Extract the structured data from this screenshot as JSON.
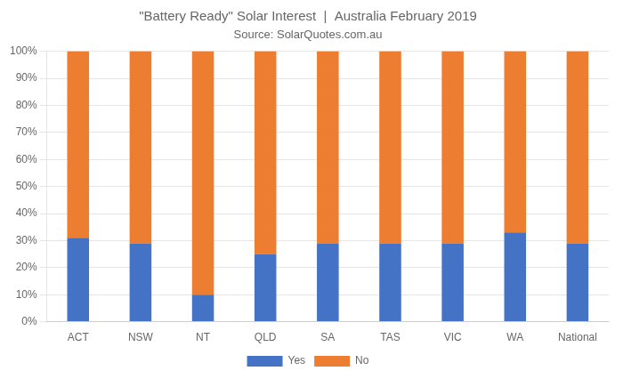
{
  "chart_data": {
    "type": "bar",
    "title": "\"Battery Ready\" Solar Interest  |  Australia February 2019",
    "subtitle": "Source: SolarQuotes.com.au",
    "categories": [
      "ACT",
      "NSW",
      "NT",
      "QLD",
      "SA",
      "TAS",
      "VIC",
      "WA",
      "National"
    ],
    "series": [
      {
        "name": "Yes",
        "color": "#4472C4",
        "values": [
          31,
          29,
          10,
          25,
          29,
          29,
          29,
          33,
          29
        ]
      },
      {
        "name": "No",
        "color": "#ED7D31",
        "values": [
          69,
          71,
          90,
          75,
          71,
          71,
          71,
          67,
          71
        ]
      }
    ],
    "stacked": true,
    "ylim": [
      0,
      100
    ],
    "yticks": [
      {
        "value": 0,
        "label": "0%"
      },
      {
        "value": 10,
        "label": "10%"
      },
      {
        "value": 20,
        "label": "20%"
      },
      {
        "value": 30,
        "label": "30%"
      },
      {
        "value": 40,
        "label": "40%"
      },
      {
        "value": 50,
        "label": "50%"
      },
      {
        "value": 60,
        "label": "60%"
      },
      {
        "value": 70,
        "label": "70%"
      },
      {
        "value": 80,
        "label": "80%"
      },
      {
        "value": 90,
        "label": "90%"
      },
      {
        "value": 100,
        "label": "100%"
      }
    ],
    "grid": true,
    "legend": "bottom"
  }
}
